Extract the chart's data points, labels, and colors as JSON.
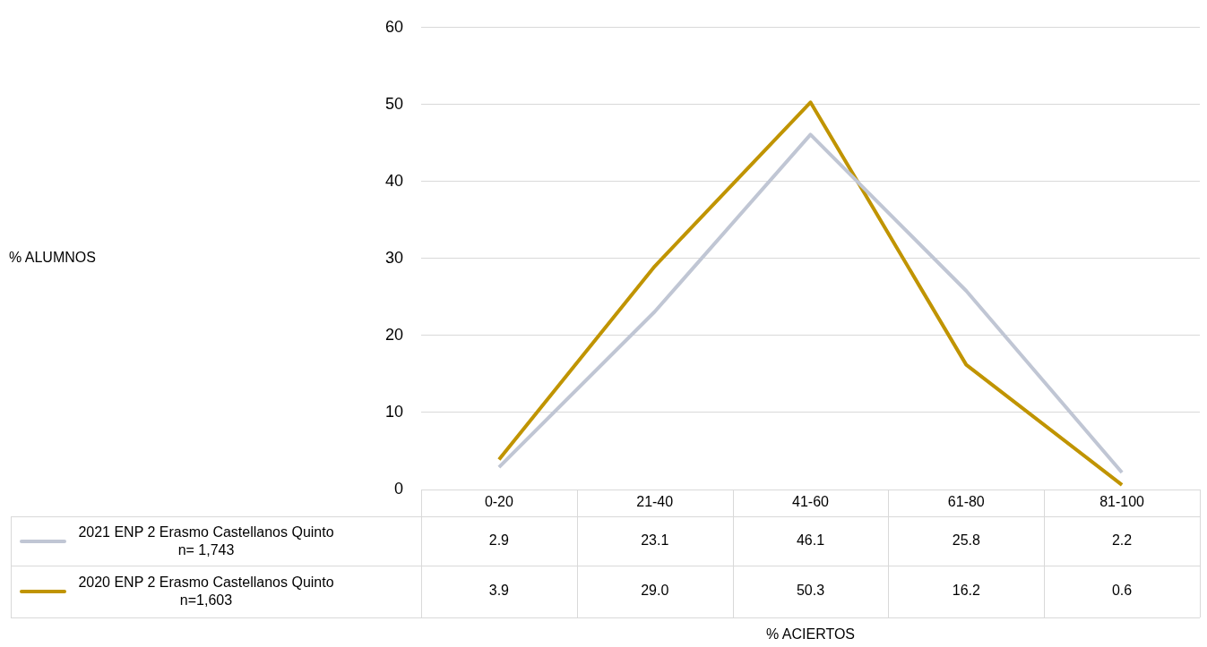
{
  "chart_data": {
    "type": "line",
    "annotations": [
      "% ALUMNOS",
      "% ACIERTOS"
    ],
    "categories": [
      "0-20",
      "21-40",
      "41-60",
      "61-80",
      "81-100"
    ],
    "series": [
      {
        "name": "2021 ENP 2 Erasmo Castellanos Quinto n= 1,743",
        "color": "#c0c6d4",
        "values": [
          2.9,
          23.1,
          46.1,
          25.8,
          2.2
        ],
        "value_labels": [
          "2.9",
          "23.1",
          "46.1",
          "25.8",
          "2.2"
        ]
      },
      {
        "name": "2020 ENP 2 Erasmo Castellanos Quinto n=1,603",
        "color": "#c09400",
        "values": [
          3.9,
          29.0,
          50.3,
          16.2,
          0.6
        ],
        "value_labels": [
          "3.9",
          "29.0",
          "50.3",
          "16.2",
          "0.6"
        ]
      }
    ],
    "ylim": [
      0,
      60
    ],
    "yticks": [
      0,
      10,
      20,
      30,
      40,
      50,
      60
    ],
    "grid": "y",
    "legend": "bottom left",
    "marker": "none",
    "line_style": "solid"
  }
}
